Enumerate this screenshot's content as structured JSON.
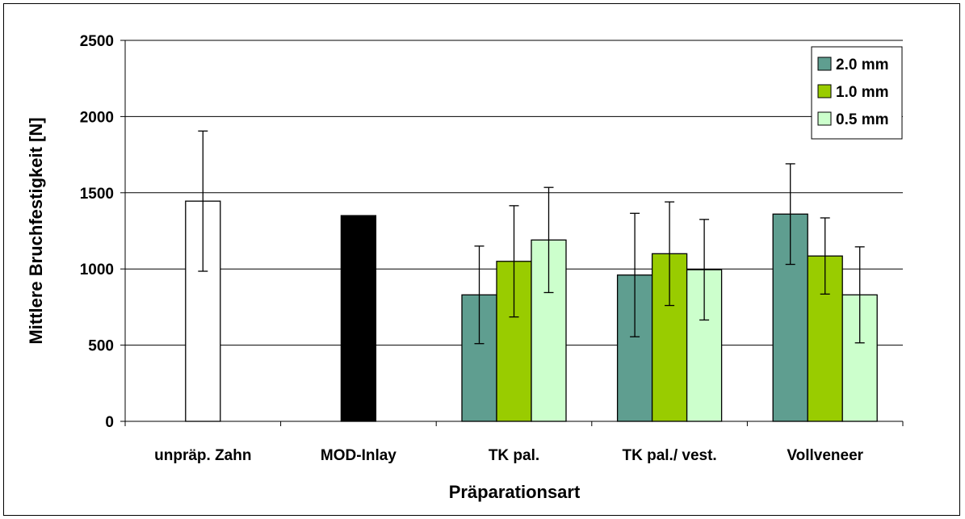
{
  "chart_data": {
    "type": "bar",
    "title": "",
    "xlabel": "Präparationsart",
    "ylabel": "Mittlere Bruchfestigkeit [N]",
    "ylim": [
      0,
      2500
    ],
    "yticks": [
      0,
      500,
      1000,
      1500,
      2000,
      2500
    ],
    "grid": true,
    "legend_position": "top-right",
    "categories": [
      "unpräp. Zahn",
      "MOD-Inlay",
      "TK pal.",
      "TK pal./ vest.",
      "Vollveneer"
    ],
    "series": [
      {
        "name": "2.0 mm",
        "color": "#5f9e90",
        "values": [
          null,
          null,
          830,
          960,
          1360
        ],
        "errors": [
          null,
          null,
          320,
          405,
          330
        ]
      },
      {
        "name": "1.0 mm",
        "color": "#99cc00",
        "values": [
          null,
          null,
          1050,
          1100,
          1085
        ],
        "errors": [
          null,
          null,
          365,
          340,
          250
        ]
      },
      {
        "name": "0.5 mm",
        "color": "#ccffcc",
        "values": [
          null,
          null,
          1190,
          995,
          830
        ],
        "errors": [
          null,
          null,
          345,
          330,
          315
        ]
      }
    ],
    "reference_bars": [
      {
        "category": "unpräp. Zahn",
        "value": 1445,
        "error": 460,
        "color": "#ffffff"
      },
      {
        "category": "MOD-Inlay",
        "value": 1350,
        "error": null,
        "color": "#000000"
      }
    ]
  }
}
